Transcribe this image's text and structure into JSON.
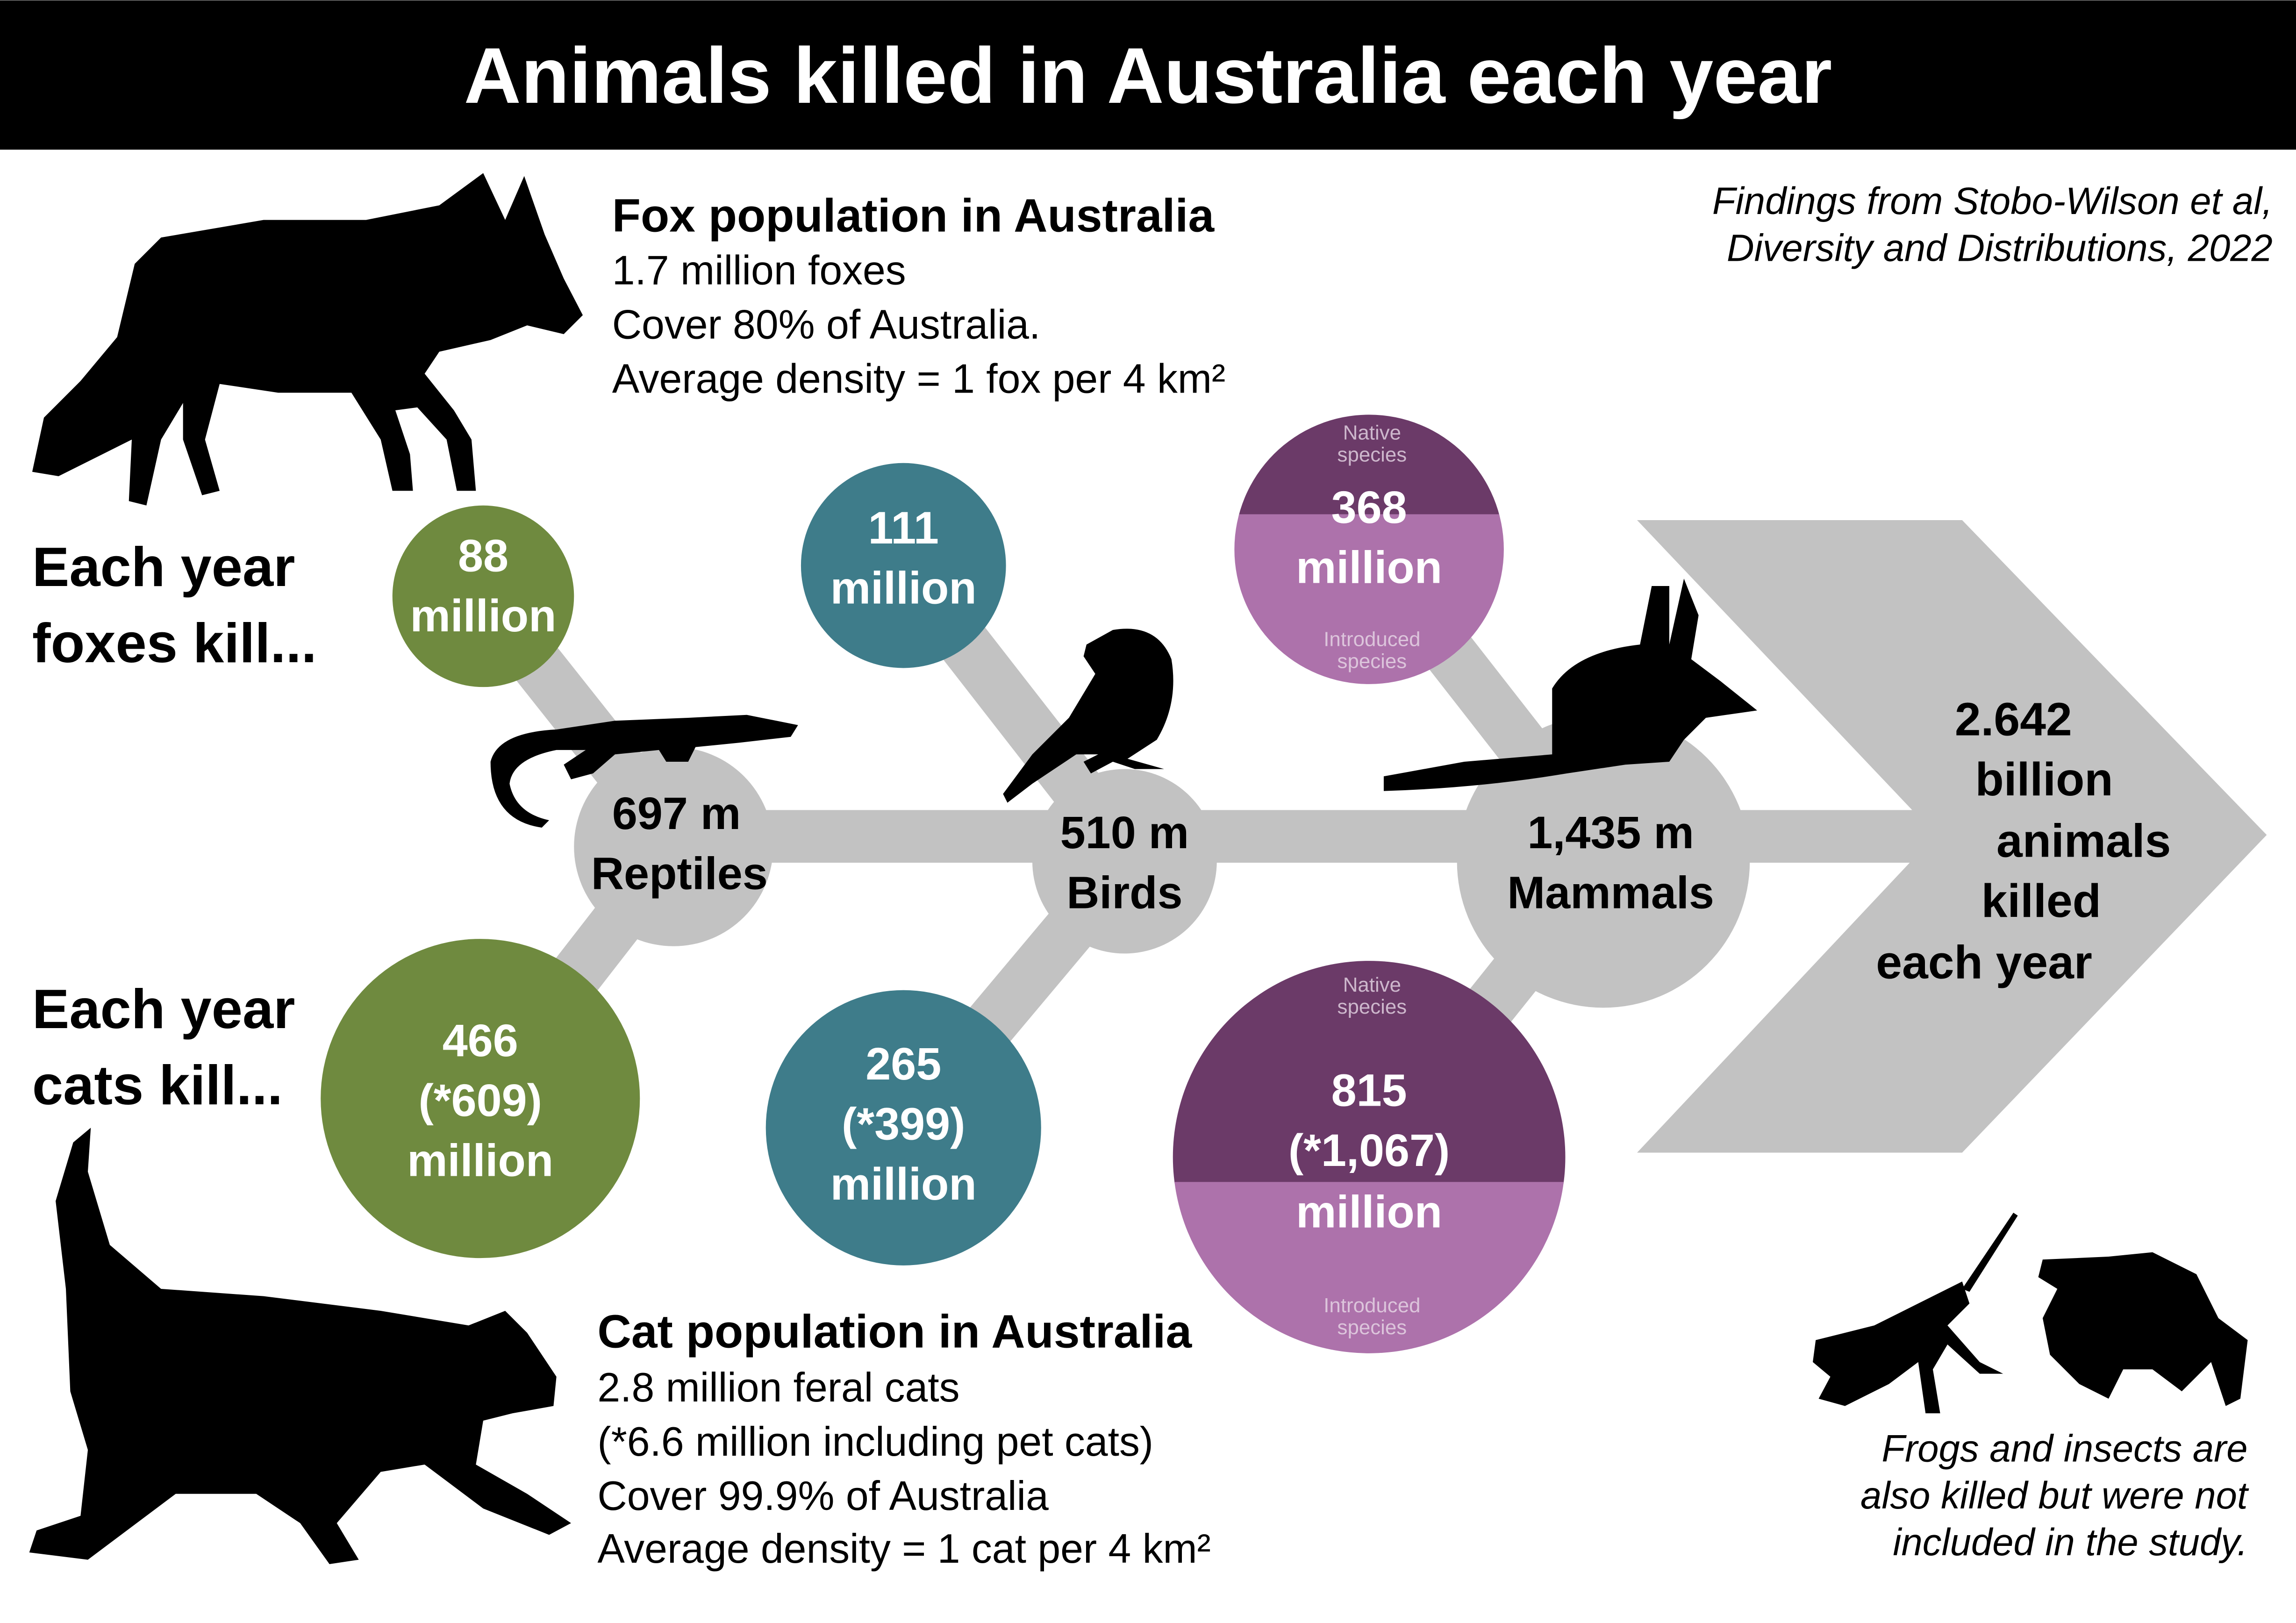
{
  "title": "Animals killed in Australia each year",
  "citation": [
    "Findings from Stobo-Wilson et al,",
    "Diversity and Distributions, 2022"
  ],
  "colors": {
    "reptiles": "#6f8a3f",
    "birds": "#3e7c8a",
    "mammals_native": "#6b3a68",
    "mammals_introduced": "#ad72ab",
    "spine": "#c2c2c2",
    "title_bar": "#000000"
  },
  "fox": {
    "heading": "Fox population in Australia",
    "lines": [
      "1.7 million foxes",
      "Cover 80% of Australia.",
      "Average density = 1 fox per 4 km²"
    ],
    "label": [
      "Each year",
      "foxes kill..."
    ],
    "reptiles": [
      "88",
      "million"
    ],
    "birds": [
      "111",
      "million"
    ],
    "mammals": {
      "native_label": [
        "Native",
        "species"
      ],
      "value": [
        "368",
        "million"
      ],
      "introduced_label": [
        "Introduced",
        "species"
      ]
    }
  },
  "cat": {
    "heading": "Cat population in Australia",
    "lines": [
      "2.8 million feral cats",
      "(*6.6 million including pet cats)",
      "Cover 99.9% of Australia",
      "Average density = 1 cat per 4 km²"
    ],
    "label": [
      "Each year",
      "cats kill..."
    ],
    "reptiles": [
      "466",
      "(*609)",
      "million"
    ],
    "birds": [
      "265",
      "(*399)",
      "million"
    ],
    "mammals": {
      "native_label": [
        "Native",
        "species"
      ],
      "value": [
        "815",
        "(*1,067)",
        "million"
      ],
      "introduced_label": [
        "Introduced",
        "species"
      ]
    }
  },
  "totals": {
    "reptiles": [
      "697 m",
      "Reptiles"
    ],
    "birds": [
      "510 m",
      "Birds"
    ],
    "mammals": [
      "1,435 m",
      "Mammals"
    ],
    "overall": [
      "2.642",
      "billion",
      "animals",
      "killed",
      "each year"
    ]
  },
  "footnote": [
    "Frogs and insects are",
    "also killed but were not",
    "included in the study."
  ],
  "icons": [
    "fox-silhouette",
    "cat-silhouette",
    "lizard-silhouette",
    "bird-silhouette",
    "bilby-silhouette",
    "grasshopper-silhouette",
    "frog-silhouette"
  ]
}
